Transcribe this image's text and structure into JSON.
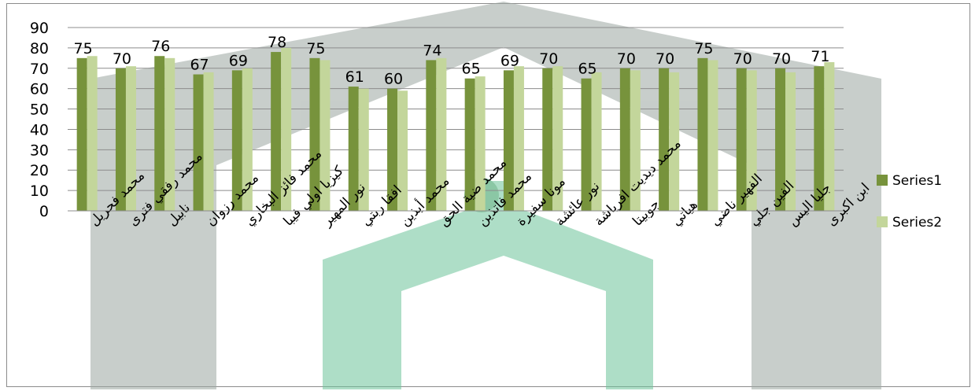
{
  "chart_data": {
    "type": "bar",
    "title": "",
    "xlabel": "",
    "ylabel": "",
    "ylim": [
      0,
      90
    ],
    "yticks": [
      0,
      10,
      20,
      30,
      40,
      50,
      60,
      70,
      80,
      90
    ],
    "grid": true,
    "legend_position": "right",
    "categories": [
      "محمد فحريل",
      "محمد رفقي فترى",
      "نابيل",
      "محمد رزوان",
      "محمد فائز البخاري",
      "كيزيا اولي فيبا",
      "نور المهير",
      "افقا ربتي",
      "محمد أيذين",
      "محمد ضية الحق",
      "محمد فاتذين",
      "مونا سفيرة",
      "نور عائشة",
      "محمد ديديت افرياشة",
      "جوبيتا",
      "هياتي",
      "الفهير ناضي",
      "الفين جلي",
      "جليا اليس",
      "ابن اكبرى"
    ],
    "series": [
      {
        "name": "Series1",
        "color": "#77933c",
        "values": [
          75,
          70,
          76,
          67,
          69,
          78,
          75,
          61,
          60,
          74,
          65,
          69,
          70,
          65,
          70,
          70,
          75,
          70,
          70,
          71
        ]
      },
      {
        "name": "Series2",
        "color": "#c3d69b",
        "values": [
          76,
          71,
          75,
          68,
          70,
          80,
          74,
          60,
          59,
          75,
          66,
          71,
          71,
          68,
          69,
          68,
          74,
          69,
          68,
          73
        ]
      }
    ],
    "data_labels": [
      75,
      70,
      76,
      67,
      69,
      78,
      75,
      61,
      60,
      74,
      65,
      69,
      70,
      65,
      70,
      70,
      75,
      70,
      70,
      71
    ]
  }
}
